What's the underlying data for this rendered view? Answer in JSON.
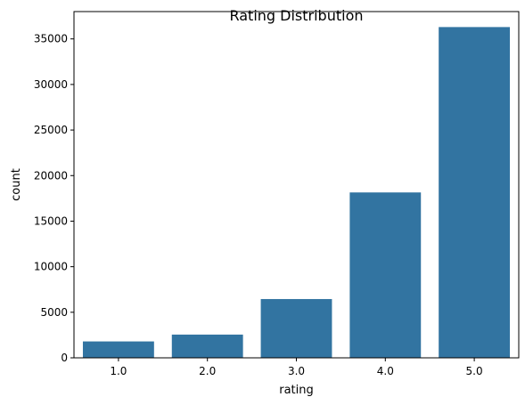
{
  "chart_data": {
    "type": "bar",
    "title": "Rating Distribution",
    "xlabel": "rating",
    "ylabel": "count",
    "categories": [
      "1.0",
      "2.0",
      "3.0",
      "4.0",
      "5.0"
    ],
    "values": [
      1800,
      2550,
      6450,
      18150,
      36300
    ],
    "ylim": [
      0,
      38000
    ],
    "yticks": [
      0,
      5000,
      10000,
      15000,
      20000,
      25000,
      30000,
      35000
    ],
    "bar_color": "#3274a1",
    "grid": false,
    "legend": "none"
  }
}
